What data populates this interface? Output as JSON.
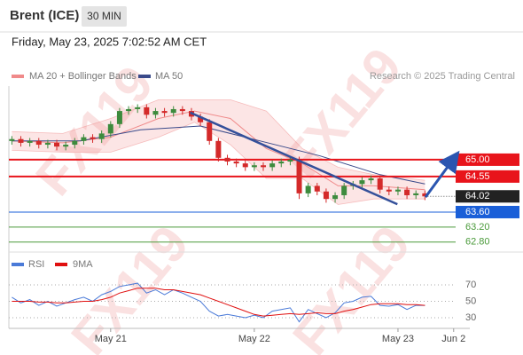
{
  "header": {
    "symbol": "Brent (ICE)",
    "interval": "30 MIN",
    "timestamp": "Friday, May 23, 2025 7:02:52 AM CET",
    "credit": "Research © 2025 Trading Central",
    "watermark": "FX119"
  },
  "chart_data": [
    {
      "type": "candlestick",
      "xlim": [
        -17,
        60
      ],
      "ylim": [
        62.58,
        66.61
      ],
      "up_color": "#3d8b3d",
      "down_color": "#d42a2a",
      "x": [
        -16.5,
        -15,
        -13.5,
        -12,
        -10.5,
        -9,
        -7.5,
        -6,
        -4.5,
        -3,
        -1.5,
        0,
        1.5,
        3,
        4.5,
        6,
        7.5,
        9,
        10.5,
        12,
        13.5,
        15,
        16.5,
        18,
        19.5,
        21,
        22.5,
        24,
        25.5,
        27,
        28.5,
        30,
        31.5,
        33,
        34.5,
        36,
        37.5,
        39,
        40.5,
        42,
        43.5,
        45,
        46.5,
        48,
        49.5,
        51,
        52.5
      ],
      "open": [
        65.5,
        65.55,
        65.45,
        65.5,
        65.4,
        65.45,
        65.35,
        65.4,
        65.5,
        65.6,
        65.55,
        65.7,
        65.95,
        66.3,
        66.35,
        66.4,
        66.2,
        66.3,
        66.25,
        66.35,
        66.3,
        66.15,
        66.0,
        65.5,
        65.05,
        64.95,
        64.9,
        64.8,
        64.85,
        64.8,
        64.9,
        64.95,
        65.0,
        64.1,
        64.3,
        64.15,
        63.95,
        64.05,
        64.3,
        64.35,
        64.45,
        64.5,
        64.2,
        64.15,
        64.2,
        64.05,
        64.1
      ],
      "high": [
        65.63,
        65.63,
        65.58,
        65.58,
        65.53,
        65.53,
        65.48,
        65.58,
        65.68,
        65.68,
        65.78,
        66.03,
        66.38,
        66.43,
        66.48,
        66.48,
        66.38,
        66.38,
        66.43,
        66.43,
        66.38,
        66.23,
        66.08,
        65.58,
        65.13,
        65.03,
        64.98,
        64.93,
        64.93,
        64.98,
        65.03,
        65.08,
        65.08,
        64.38,
        64.38,
        64.23,
        64.13,
        64.38,
        64.43,
        64.53,
        64.58,
        64.58,
        64.28,
        64.28,
        64.28,
        64.18,
        64.18
      ],
      "low": [
        65.4,
        65.35,
        65.35,
        65.3,
        65.3,
        65.25,
        65.25,
        65.3,
        65.4,
        65.45,
        65.45,
        65.6,
        65.85,
        66.2,
        66.25,
        66.1,
        66.1,
        66.15,
        66.15,
        66.2,
        66.05,
        65.9,
        65.4,
        64.95,
        64.85,
        64.8,
        64.7,
        64.7,
        64.7,
        64.7,
        64.8,
        64.85,
        63.95,
        64.0,
        64.05,
        63.85,
        63.85,
        63.95,
        64.2,
        64.25,
        64.35,
        64.1,
        64.05,
        64.05,
        63.95,
        63.95,
        63.92
      ],
      "close": [
        65.55,
        65.45,
        65.5,
        65.4,
        65.45,
        65.35,
        65.4,
        65.5,
        65.6,
        65.55,
        65.7,
        65.95,
        66.3,
        66.35,
        66.4,
        66.2,
        66.3,
        66.25,
        66.35,
        66.3,
        66.15,
        66.0,
        65.5,
        65.05,
        64.95,
        64.9,
        64.8,
        64.85,
        64.8,
        64.9,
        64.95,
        65.0,
        64.1,
        64.3,
        64.15,
        63.95,
        64.05,
        64.3,
        64.35,
        64.45,
        64.5,
        64.2,
        64.15,
        64.2,
        64.05,
        64.1,
        64.02
      ],
      "series": [
        {
          "name": "MA 20 + Bollinger Bands",
          "color": "#f08a8a",
          "x": [
            -16.5,
            -8,
            0,
            8,
            14,
            20,
            26,
            32,
            38,
            44,
            52.5
          ],
          "values": [
            65.5,
            65.45,
            65.6,
            66.1,
            66.3,
            66.1,
            65.3,
            64.9,
            64.3,
            64.3,
            64.2
          ],
          "upper": [
            65.75,
            65.7,
            66.1,
            66.6,
            66.6,
            66.6,
            66.3,
            65.3,
            64.8,
            64.6,
            64.45
          ],
          "lower": [
            65.25,
            65.2,
            65.2,
            65.6,
            66.0,
            65.4,
            64.5,
            64.5,
            63.8,
            63.95,
            63.95
          ]
        },
        {
          "name": "MA 50",
          "color": "#3a4a8a",
          "x": [
            -16.5,
            -5,
            5,
            15,
            25,
            35,
            45,
            52.5
          ],
          "values": [
            65.5,
            65.5,
            65.8,
            65.9,
            65.5,
            65.1,
            64.6,
            64.35
          ]
        }
      ],
      "trend_line": {
        "color": "#34509a",
        "x": [
          13.3,
          47.9
        ],
        "values": [
          66.26,
          63.81
        ]
      },
      "arrow": {
        "color": "#2a55b0",
        "x": [
          52.6,
          57.5
        ],
        "values": [
          64.0,
          65.07
        ]
      },
      "levels": [
        {
          "value": 65,
          "label": "65.00",
          "color": "#e8141b",
          "style": "box"
        },
        {
          "value": 64.55,
          "label": "64.55",
          "color": "#e8141b",
          "style": "box"
        },
        {
          "value": 64.02,
          "label": "64.02",
          "color": "#222222",
          "style": "current"
        },
        {
          "value": 63.6,
          "label": "63.60",
          "color": "#1a5fd8",
          "style": "box"
        },
        {
          "value": 63.2,
          "label": "63.20",
          "color": "#4a9a3a",
          "style": "text"
        },
        {
          "value": 62.8,
          "label": "62.80",
          "color": "#4a9a3a",
          "style": "text"
        }
      ]
    },
    {
      "type": "line",
      "xlim": [
        -17,
        60
      ],
      "ylim": [
        17,
        103.5
      ],
      "yticks": [
        30,
        50,
        70
      ],
      "xticks": [
        {
          "value": 0,
          "label": "May 21"
        },
        {
          "value": 24,
          "label": "May 22"
        },
        {
          "value": 48,
          "label": "May 23"
        },
        {
          "value": 57.3,
          "label": "Jun 2"
        }
      ],
      "x": [
        -16.5,
        -15,
        -13.5,
        -12,
        -10.5,
        -9,
        -7.5,
        -6,
        -4.5,
        -3,
        -1.5,
        0,
        1.5,
        3,
        4.5,
        6,
        7.5,
        9,
        10.5,
        12,
        13.5,
        15,
        16.5,
        18,
        19.5,
        21,
        22.5,
        24,
        25.5,
        27,
        28.5,
        30,
        31.5,
        33,
        34.5,
        36,
        37.5,
        39,
        40.5,
        42,
        43.5,
        45,
        46.5,
        48,
        49.5,
        51,
        52.5
      ],
      "series": [
        {
          "name": "RSI",
          "color": "#4a7ad8",
          "values": [
            55,
            48,
            52,
            45,
            50,
            44,
            48,
            52,
            55,
            50,
            58,
            62,
            68,
            70,
            72,
            60,
            64,
            58,
            64,
            60,
            55,
            50,
            38,
            32,
            34,
            32,
            30,
            33,
            30,
            38,
            40,
            42,
            25,
            40,
            35,
            30,
            36,
            48,
            50,
            55,
            56,
            45,
            44,
            46,
            40,
            45,
            45
          ]
        },
        {
          "name": "9MA",
          "color": "#e01010",
          "values": [
            50,
            50,
            50,
            49,
            49,
            48,
            48,
            49,
            50,
            50,
            52,
            55,
            60,
            63,
            66,
            66,
            66,
            64,
            64,
            62,
            60,
            58,
            54,
            50,
            46,
            42,
            38,
            34,
            32,
            33,
            34,
            35,
            34,
            35,
            36,
            35,
            35,
            38,
            40,
            43,
            46,
            47,
            47,
            47,
            46,
            46,
            45
          ]
        }
      ]
    }
  ]
}
